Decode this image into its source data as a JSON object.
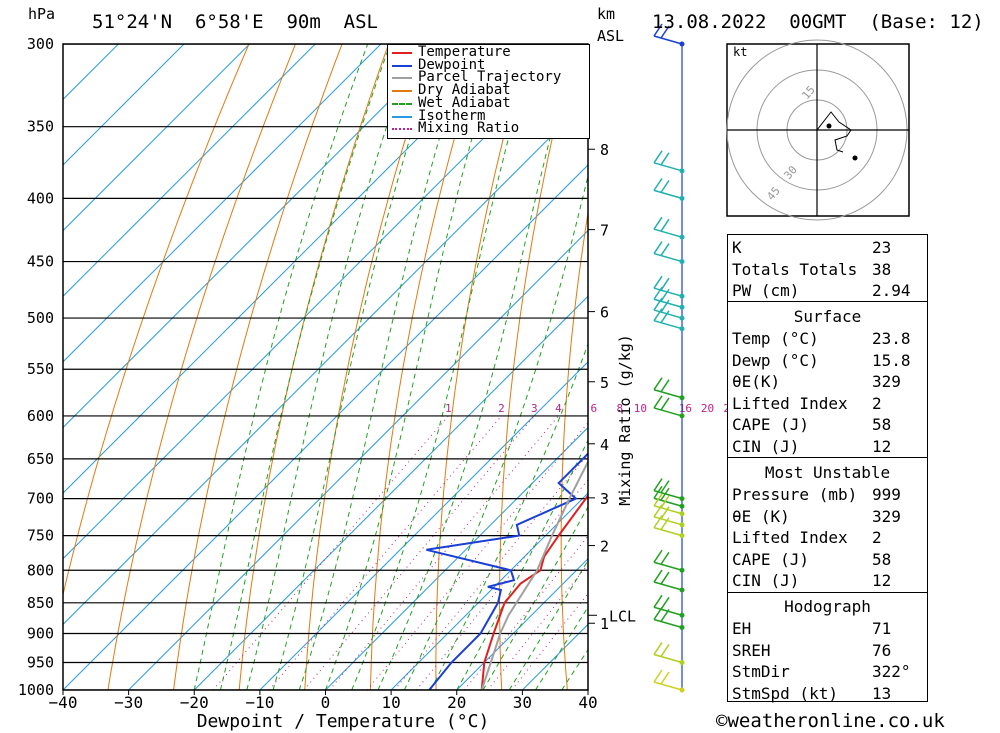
{
  "header": {
    "hpa_label": "hPa",
    "location": "51°24'N  6°58'E  90m  ASL",
    "km_label": "km",
    "asl_label": "ASL",
    "datetime": "13.08.2022  00GMT  (Base: 12)"
  },
  "legend": [
    {
      "label": "Temperature",
      "color": "#e02020",
      "style": "solid"
    },
    {
      "label": "Dewpoint",
      "color": "#1a3fd6",
      "style": "solid"
    },
    {
      "label": "Parcel Trajectory",
      "color": "#a0a0a0",
      "style": "solid"
    },
    {
      "label": "Dry Adiabat",
      "color": "#e07a10",
      "style": "solid"
    },
    {
      "label": "Wet Adiabat",
      "color": "#20a020",
      "style": "dashed"
    },
    {
      "label": "Isotherm",
      "color": "#2a9be0",
      "style": "solid"
    },
    {
      "label": "Mixing Ratio",
      "color": "#c0208a",
      "style": "dotted"
    }
  ],
  "chart_data": {
    "type": "line",
    "xlabel": "Dewpoint / Temperature (°C)",
    "ylabel": "hPa",
    "xlim": [
      -40,
      40
    ],
    "ylim": [
      1000,
      300
    ],
    "x_ticks": [
      "−40",
      "−30",
      "−20",
      "−10",
      "0",
      "10",
      "20",
      "30",
      "40"
    ],
    "pressure_levels": [
      "300",
      "350",
      "400",
      "450",
      "500",
      "550",
      "600",
      "650",
      "700",
      "750",
      "800",
      "850",
      "900",
      "950",
      "1000"
    ],
    "km_ticks": [
      "8",
      "7",
      "6",
      "5",
      "4",
      "3",
      "2",
      "1"
    ],
    "lcl_label": "LCL",
    "mixing_ratio_label": "Mixing Ratio (g/kg)",
    "mixing_ratio_values": [
      "1",
      "2",
      "3",
      "4",
      "6",
      "8",
      "10",
      "16",
      "20",
      "25"
    ],
    "series": [
      {
        "name": "Temperature",
        "color": "#e02020",
        "points": [
          [
            23.8,
            1000
          ],
          [
            20,
            950
          ],
          [
            17,
            900
          ],
          [
            14,
            850
          ],
          [
            13.5,
            820
          ],
          [
            14.5,
            800
          ],
          [
            13,
            780
          ],
          [
            12,
            750
          ],
          [
            10.5,
            700
          ],
          [
            9,
            650
          ],
          [
            8.5,
            600
          ],
          [
            7.5,
            550
          ],
          [
            6,
            500
          ],
          [
            4.5,
            450
          ],
          [
            3.5,
            420
          ],
          [
            0.5,
            400
          ],
          [
            -2,
            370
          ],
          [
            -5,
            350
          ],
          [
            -9,
            330
          ],
          [
            -13,
            300
          ]
        ]
      },
      {
        "name": "Dewpoint",
        "color": "#1a3fd6",
        "points": [
          [
            15.8,
            1000
          ],
          [
            15,
            950
          ],
          [
            15,
            900
          ],
          [
            13,
            850
          ],
          [
            11.5,
            830
          ],
          [
            9,
            825
          ],
          [
            12,
            815
          ],
          [
            10,
            800
          ],
          [
            -6,
            770
          ],
          [
            6,
            750
          ],
          [
            4,
            735
          ],
          [
            9,
            700
          ],
          [
            4,
            680
          ],
          [
            4,
            640
          ],
          [
            10,
            650
          ],
          [
            8,
            620
          ],
          [
            8,
            590
          ],
          [
            9,
            580
          ],
          [
            -7,
            545
          ],
          [
            0,
            530
          ],
          [
            -6,
            520
          ],
          [
            8,
            515
          ],
          [
            -2,
            505
          ],
          [
            5,
            490
          ],
          [
            6,
            470
          ],
          [
            0,
            465
          ],
          [
            2,
            460
          ],
          [
            -3,
            450
          ],
          [
            0,
            435
          ],
          [
            -1,
            420
          ],
          [
            -3,
            380
          ],
          [
            -4,
            360
          ],
          [
            -5,
            340
          ],
          [
            -10,
            300
          ]
        ]
      },
      {
        "name": "Parcel Trajectory",
        "color": "#a0a0a0",
        "points": [
          [
            23.8,
            1000
          ],
          [
            21,
            950
          ],
          [
            18,
            900
          ],
          [
            16.5,
            870
          ],
          [
            14,
            800
          ],
          [
            11,
            750
          ],
          [
            8,
            700
          ],
          [
            5,
            650
          ],
          [
            2,
            600
          ],
          [
            -1,
            550
          ],
          [
            -5,
            500
          ],
          [
            -9,
            460
          ],
          [
            -12,
            430
          ],
          [
            -15,
            400
          ],
          [
            -19,
            370
          ],
          [
            -23,
            340
          ],
          [
            -28,
            310
          ]
        ]
      }
    ],
    "wind_barbs": [
      "barb",
      "barb",
      "barb",
      "barb",
      "barb",
      "barb",
      "barb",
      "barb",
      "barb",
      "barb",
      "barb",
      "barb",
      "barb",
      "barb",
      "barb",
      "barb",
      "barb",
      "barb",
      "barb",
      "barb",
      "barb",
      "barb"
    ]
  },
  "hodograph": {
    "unit": "kt",
    "ring_labels": [
      "15",
      "30",
      "45"
    ]
  },
  "indices": {
    "rows": [
      {
        "k": "K",
        "v": "23"
      },
      {
        "k": "Totals Totals",
        "v": "38"
      },
      {
        "k": "PW (cm)",
        "v": "2.94"
      }
    ]
  },
  "surface": {
    "title": "Surface",
    "rows": [
      {
        "k": "Temp (°C)",
        "v": "23.8"
      },
      {
        "k": "Dewp (°C)",
        "v": "15.8"
      },
      {
        "k": "θE(K)",
        "v": "329"
      },
      {
        "k": "Lifted Index",
        "v": "2"
      },
      {
        "k": "CAPE (J)",
        "v": "58"
      },
      {
        "k": "CIN (J)",
        "v": "12"
      }
    ]
  },
  "most_unstable": {
    "title": "Most Unstable",
    "rows": [
      {
        "k": "Pressure (mb)",
        "v": "999"
      },
      {
        "k": "θE (K)",
        "v": "329"
      },
      {
        "k": "Lifted Index",
        "v": "2"
      },
      {
        "k": "CAPE (J)",
        "v": "58"
      },
      {
        "k": "CIN (J)",
        "v": "12"
      }
    ]
  },
  "hodo_params": {
    "title": "Hodograph",
    "rows": [
      {
        "k": "EH",
        "v": "71"
      },
      {
        "k": "SREH",
        "v": "76"
      },
      {
        "k": "StmDir",
        "v": "322°"
      },
      {
        "k": "StmSpd (kt)",
        "v": "13"
      }
    ]
  },
  "footer": "©weatheronline.co.uk"
}
